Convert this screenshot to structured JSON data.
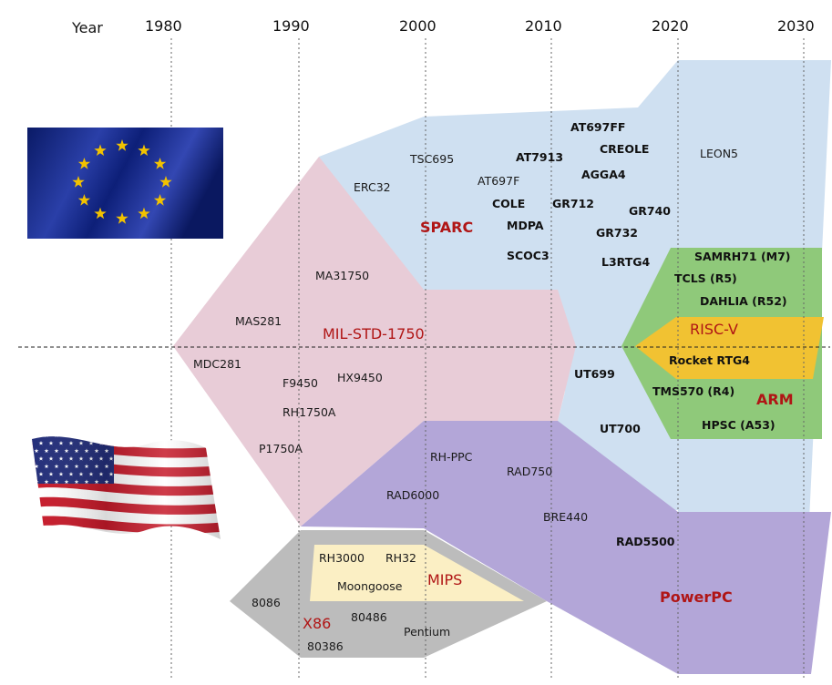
{
  "axis": {
    "label": "Year",
    "years": [
      "1980",
      "1990",
      "2000",
      "2010",
      "2020",
      "2030"
    ]
  },
  "regions": {
    "eu_flag": "eu-flag",
    "us_flag": "us-flag"
  },
  "families": {
    "sparc": "SPARC",
    "mil_std": "MIL-STD-1750",
    "risc_v": "RISC-V",
    "arm": "ARM",
    "powerpc": "PowerPC",
    "mips": "MIPS",
    "x86": "X86"
  },
  "chips": {
    "sparc": {
      "at697ff": "AT697FF",
      "creole": "CREOLE",
      "tsc695": "TSC695",
      "at7913": "AT7913",
      "leon5": "LEON5",
      "agga4": "AGGA4",
      "at697f": "AT697F",
      "erc32": "ERC32",
      "cole": "COLE",
      "gr712": "GR712",
      "gr740": "GR740",
      "mdpa": "MDPA",
      "gr732": "GR732",
      "scoc3": "SCOC3",
      "l3rtg4": "L3RTG4",
      "ut699": "UT699",
      "ut700": "UT700"
    },
    "mil_std": {
      "ma31750": "MA31750",
      "mas281": "MAS281",
      "mdc281": "MDC281",
      "f9450": "F9450",
      "hx9450": "HX9450",
      "rh1750a": "RH1750A",
      "p1750a": "P1750A"
    },
    "arm": {
      "samrh71": "SAMRH71 (M7)",
      "tcls": "TCLS (R5)",
      "dahlia": "DAHLIA (R52)",
      "tms570": "TMS570 (R4)",
      "hpsc": "HPSC (A53)"
    },
    "risc_v": {
      "rocket": "Rocket RTG4"
    },
    "powerpc": {
      "rh_ppc": "RH-PPC",
      "rad750": "RAD750",
      "rad6000": "RAD6000",
      "bre440": "BRE440",
      "rad5500": "RAD5500"
    },
    "mips": {
      "rh3000": "RH3000",
      "rh32": "RH32",
      "moongoose": "Moongoose"
    },
    "x86": {
      "i8086": "8086",
      "i80486": "80486",
      "pentium": "Pentium",
      "i80386": "80386"
    }
  },
  "colors": {
    "sparc": "#cfe0f1",
    "mil_std": "#e8ccd7",
    "powerpc": "#b3a6d8",
    "arm": "#8fc97a",
    "risc_v": "#f1c232",
    "x86": "#bcbcbc",
    "mips": "#fbefc4",
    "family_label": "#b01515"
  }
}
